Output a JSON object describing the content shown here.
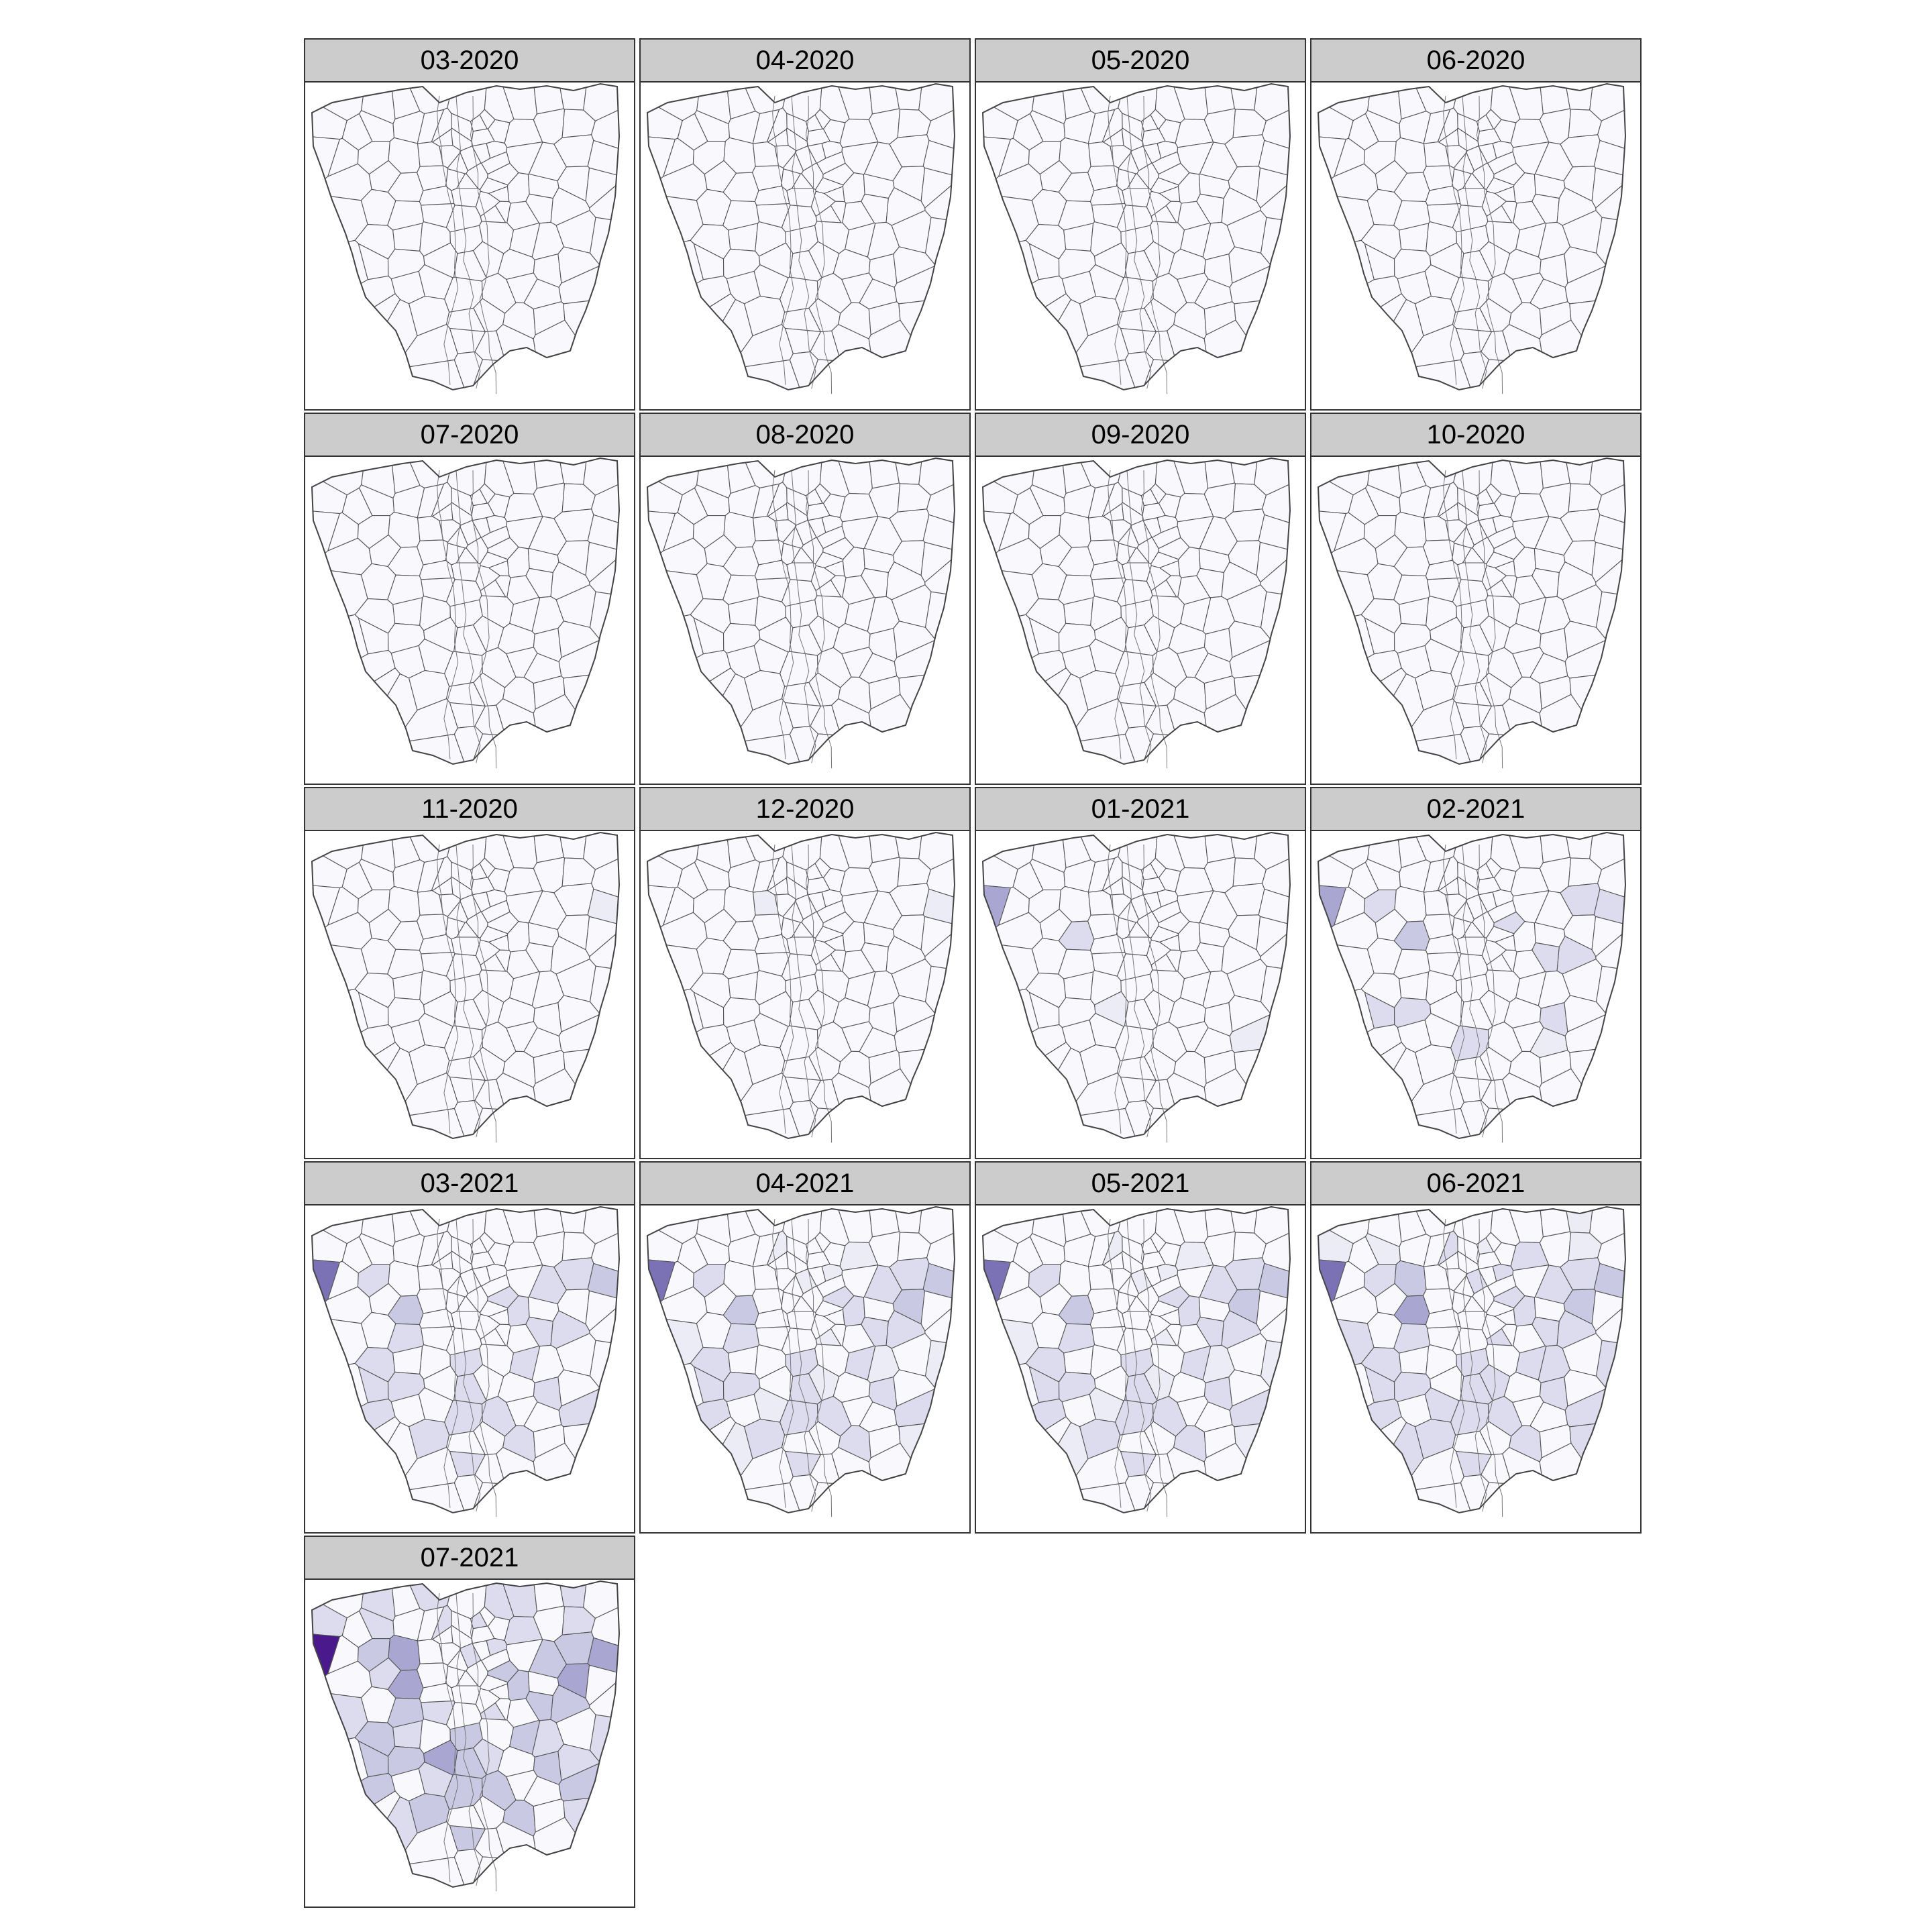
{
  "colors": {
    "strip_background": "#cccccc",
    "panel_border": "#333333",
    "district_stroke": "#555555",
    "scale": [
      "#f8f8fd",
      "#ececf6",
      "#dcdcee",
      "#c9c9e4",
      "#a9a7d1",
      "#7b72b6",
      "#4a1a8c"
    ]
  },
  "panels": [
    {
      "label": "03-2020",
      "hotspots": []
    },
    {
      "label": "04-2020",
      "hotspots": []
    },
    {
      "label": "05-2020",
      "hotspots": []
    },
    {
      "label": "06-2020",
      "hotspots": []
    },
    {
      "label": "07-2020",
      "hotspots": []
    },
    {
      "label": "08-2020",
      "hotspots": []
    },
    {
      "label": "09-2020",
      "hotspots": []
    },
    {
      "label": "10-2020",
      "hotspots": []
    },
    {
      "label": "11-2020",
      "hotspots": [
        {
          "district": 31,
          "level": 1
        }
      ]
    },
    {
      "label": "12-2020",
      "hotspots": [
        {
          "district": 31,
          "level": 1
        },
        {
          "district": 25,
          "level": 1
        }
      ]
    },
    {
      "label": "01-2021",
      "hotspots": [
        {
          "district": 21,
          "level": 4
        },
        {
          "district": 34,
          "level": 2
        },
        {
          "district": 64,
          "level": 1
        },
        {
          "district": 77,
          "level": 1
        }
      ]
    },
    {
      "label": "02-2021",
      "hotspots": [
        {
          "district": 21,
          "level": 4
        },
        {
          "district": 34,
          "level": 3
        },
        {
          "district": 31,
          "level": 2
        },
        {
          "district": 23,
          "level": 2
        },
        {
          "district": 30,
          "level": 2
        },
        {
          "district": 37,
          "level": 2
        },
        {
          "district": 49,
          "level": 2
        },
        {
          "district": 50,
          "level": 2
        },
        {
          "district": 62,
          "level": 2
        },
        {
          "district": 63,
          "level": 2
        },
        {
          "district": 68,
          "level": 2
        },
        {
          "district": 73,
          "level": 2
        },
        {
          "district": 76,
          "level": 1
        }
      ]
    },
    {
      "label": "03-2021",
      "hotspots": [
        {
          "district": 21,
          "level": 5
        },
        {
          "district": 34,
          "level": 3
        },
        {
          "district": 31,
          "level": 3
        },
        {
          "district": 23,
          "level": 2
        },
        {
          "district": 30,
          "level": 2
        },
        {
          "district": 37,
          "level": 2
        },
        {
          "district": 49,
          "level": 2
        },
        {
          "district": 50,
          "level": 2
        },
        {
          "district": 62,
          "level": 2
        },
        {
          "district": 63,
          "level": 2
        },
        {
          "district": 68,
          "level": 2
        },
        {
          "district": 73,
          "level": 2
        },
        {
          "district": 29,
          "level": 2
        },
        {
          "district": 38,
          "level": 2
        },
        {
          "district": 44,
          "level": 2
        },
        {
          "district": 52,
          "level": 2
        },
        {
          "district": 55,
          "level": 2
        },
        {
          "district": 57,
          "level": 2
        },
        {
          "district": 65,
          "level": 2
        },
        {
          "district": 70,
          "level": 2
        },
        {
          "district": 74,
          "level": 2
        },
        {
          "district": 77,
          "level": 2
        },
        {
          "district": 80,
          "level": 2
        },
        {
          "district": 83,
          "level": 2
        },
        {
          "district": 87,
          "level": 2
        }
      ]
    },
    {
      "label": "04-2021",
      "hotspots": [
        {
          "district": 21,
          "level": 5
        },
        {
          "district": 34,
          "level": 3
        },
        {
          "district": 31,
          "level": 3
        },
        {
          "district": 40,
          "level": 3
        },
        {
          "district": 23,
          "level": 2
        },
        {
          "district": 30,
          "level": 2
        },
        {
          "district": 37,
          "level": 2
        },
        {
          "district": 49,
          "level": 2
        },
        {
          "district": 50,
          "level": 2
        },
        {
          "district": 62,
          "level": 2
        },
        {
          "district": 63,
          "level": 2
        },
        {
          "district": 68,
          "level": 2
        },
        {
          "district": 73,
          "level": 2
        },
        {
          "district": 29,
          "level": 2
        },
        {
          "district": 38,
          "level": 2
        },
        {
          "district": 44,
          "level": 2
        },
        {
          "district": 52,
          "level": 2
        },
        {
          "district": 55,
          "level": 2
        },
        {
          "district": 57,
          "level": 2
        },
        {
          "district": 65,
          "level": 2
        },
        {
          "district": 70,
          "level": 2
        },
        {
          "district": 74,
          "level": 2
        },
        {
          "district": 77,
          "level": 2
        },
        {
          "district": 80,
          "level": 2
        },
        {
          "district": 83,
          "level": 2
        },
        {
          "district": 87,
          "level": 2
        },
        {
          "district": 14,
          "level": 1
        },
        {
          "district": 17,
          "level": 1
        },
        {
          "district": 26,
          "level": 1
        },
        {
          "district": 27,
          "level": 1
        },
        {
          "district": 42,
          "level": 1
        },
        {
          "district": 47,
          "level": 1
        },
        {
          "district": 58,
          "level": 1
        },
        {
          "district": 60,
          "level": 1
        },
        {
          "district": 66,
          "level": 1
        },
        {
          "district": 72,
          "level": 1
        },
        {
          "district": 79,
          "level": 1
        },
        {
          "district": 85,
          "level": 1
        }
      ]
    },
    {
      "label": "05-2021",
      "hotspots": [
        {
          "district": 21,
          "level": 5
        },
        {
          "district": 34,
          "level": 3
        },
        {
          "district": 31,
          "level": 3
        },
        {
          "district": 40,
          "level": 3
        },
        {
          "district": 23,
          "level": 2
        },
        {
          "district": 30,
          "level": 2
        },
        {
          "district": 37,
          "level": 2
        },
        {
          "district": 49,
          "level": 2
        },
        {
          "district": 50,
          "level": 2
        },
        {
          "district": 62,
          "level": 2
        },
        {
          "district": 63,
          "level": 2
        },
        {
          "district": 68,
          "level": 2
        },
        {
          "district": 73,
          "level": 2
        },
        {
          "district": 29,
          "level": 2
        },
        {
          "district": 38,
          "level": 2
        },
        {
          "district": 44,
          "level": 2
        },
        {
          "district": 52,
          "level": 2
        },
        {
          "district": 55,
          "level": 2
        },
        {
          "district": 57,
          "level": 2
        },
        {
          "district": 65,
          "level": 2
        },
        {
          "district": 70,
          "level": 2
        },
        {
          "district": 74,
          "level": 2
        },
        {
          "district": 77,
          "level": 2
        },
        {
          "district": 80,
          "level": 2
        },
        {
          "district": 83,
          "level": 2
        },
        {
          "district": 87,
          "level": 2
        },
        {
          "district": 14,
          "level": 1
        },
        {
          "district": 17,
          "level": 1
        },
        {
          "district": 26,
          "level": 1
        },
        {
          "district": 27,
          "level": 1
        },
        {
          "district": 42,
          "level": 1
        },
        {
          "district": 47,
          "level": 1
        },
        {
          "district": 58,
          "level": 1
        },
        {
          "district": 60,
          "level": 1
        },
        {
          "district": 66,
          "level": 1
        },
        {
          "district": 72,
          "level": 1
        },
        {
          "district": 79,
          "level": 1
        },
        {
          "district": 85,
          "level": 1
        }
      ]
    },
    {
      "label": "06-2021",
      "hotspots": [
        {
          "district": 21,
          "level": 5
        },
        {
          "district": 34,
          "level": 4
        },
        {
          "district": 31,
          "level": 3
        },
        {
          "district": 40,
          "level": 3
        },
        {
          "district": 24,
          "level": 3
        },
        {
          "district": 23,
          "level": 2
        },
        {
          "district": 30,
          "level": 2
        },
        {
          "district": 37,
          "level": 2
        },
        {
          "district": 49,
          "level": 2
        },
        {
          "district": 50,
          "level": 2
        },
        {
          "district": 62,
          "level": 2
        },
        {
          "district": 63,
          "level": 2
        },
        {
          "district": 68,
          "level": 2
        },
        {
          "district": 73,
          "level": 2
        },
        {
          "district": 29,
          "level": 2
        },
        {
          "district": 38,
          "level": 2
        },
        {
          "district": 44,
          "level": 2
        },
        {
          "district": 52,
          "level": 2
        },
        {
          "district": 55,
          "level": 2
        },
        {
          "district": 57,
          "level": 2
        },
        {
          "district": 65,
          "level": 2
        },
        {
          "district": 70,
          "level": 2
        },
        {
          "district": 74,
          "level": 2
        },
        {
          "district": 77,
          "level": 2
        },
        {
          "district": 80,
          "level": 2
        },
        {
          "district": 83,
          "level": 2
        },
        {
          "district": 87,
          "level": 2
        },
        {
          "district": 14,
          "level": 2
        },
        {
          "district": 17,
          "level": 2
        },
        {
          "district": 26,
          "level": 2
        },
        {
          "district": 27,
          "level": 2
        },
        {
          "district": 42,
          "level": 2
        },
        {
          "district": 47,
          "level": 2
        },
        {
          "district": 58,
          "level": 2
        },
        {
          "district": 60,
          "level": 2
        },
        {
          "district": 66,
          "level": 2
        },
        {
          "district": 72,
          "level": 2
        },
        {
          "district": 79,
          "level": 2
        },
        {
          "district": 85,
          "level": 2
        },
        {
          "district": 8,
          "level": 1
        },
        {
          "district": 10,
          "level": 1
        },
        {
          "district": 12,
          "level": 1
        },
        {
          "district": 16,
          "level": 1
        },
        {
          "district": 19,
          "level": 1
        }
      ]
    },
    {
      "label": "07-2021",
      "hotspots": [
        {
          "district": 21,
          "level": 6
        },
        {
          "district": 34,
          "level": 4
        },
        {
          "district": 31,
          "level": 4
        },
        {
          "district": 40,
          "level": 4
        },
        {
          "district": 24,
          "level": 4
        },
        {
          "district": 64,
          "level": 4
        },
        {
          "district": 23,
          "level": 3
        },
        {
          "district": 30,
          "level": 3
        },
        {
          "district": 37,
          "level": 3
        },
        {
          "district": 49,
          "level": 3
        },
        {
          "district": 50,
          "level": 3
        },
        {
          "district": 62,
          "level": 3
        },
        {
          "district": 63,
          "level": 3
        },
        {
          "district": 68,
          "level": 3
        },
        {
          "district": 73,
          "level": 3
        },
        {
          "district": 29,
          "level": 3
        },
        {
          "district": 38,
          "level": 3
        },
        {
          "district": 44,
          "level": 3
        },
        {
          "district": 52,
          "level": 3
        },
        {
          "district": 55,
          "level": 3
        },
        {
          "district": 57,
          "level": 3
        },
        {
          "district": 65,
          "level": 3
        },
        {
          "district": 70,
          "level": 3
        },
        {
          "district": 74,
          "level": 3
        },
        {
          "district": 77,
          "level": 3
        },
        {
          "district": 80,
          "level": 3
        },
        {
          "district": 83,
          "level": 3
        },
        {
          "district": 87,
          "level": 3
        },
        {
          "district": 14,
          "level": 2
        },
        {
          "district": 17,
          "level": 2
        },
        {
          "district": 26,
          "level": 2
        },
        {
          "district": 27,
          "level": 2
        },
        {
          "district": 42,
          "level": 2
        },
        {
          "district": 47,
          "level": 2
        },
        {
          "district": 58,
          "level": 2
        },
        {
          "district": 60,
          "level": 2
        },
        {
          "district": 66,
          "level": 2
        },
        {
          "district": 72,
          "level": 2
        },
        {
          "district": 79,
          "level": 2
        },
        {
          "district": 85,
          "level": 2
        },
        {
          "district": 8,
          "level": 2
        },
        {
          "district": 10,
          "level": 2
        },
        {
          "district": 12,
          "level": 2
        },
        {
          "district": 16,
          "level": 2
        },
        {
          "district": 19,
          "level": 2
        },
        {
          "district": 1,
          "level": 2
        },
        {
          "district": 3,
          "level": 2
        },
        {
          "district": 5,
          "level": 2
        },
        {
          "district": 6,
          "level": 2
        },
        {
          "district": 33,
          "level": 2
        },
        {
          "district": 45,
          "level": 2
        },
        {
          "district": 53,
          "level": 2
        },
        {
          "district": 69,
          "level": 2
        }
      ]
    }
  ]
}
